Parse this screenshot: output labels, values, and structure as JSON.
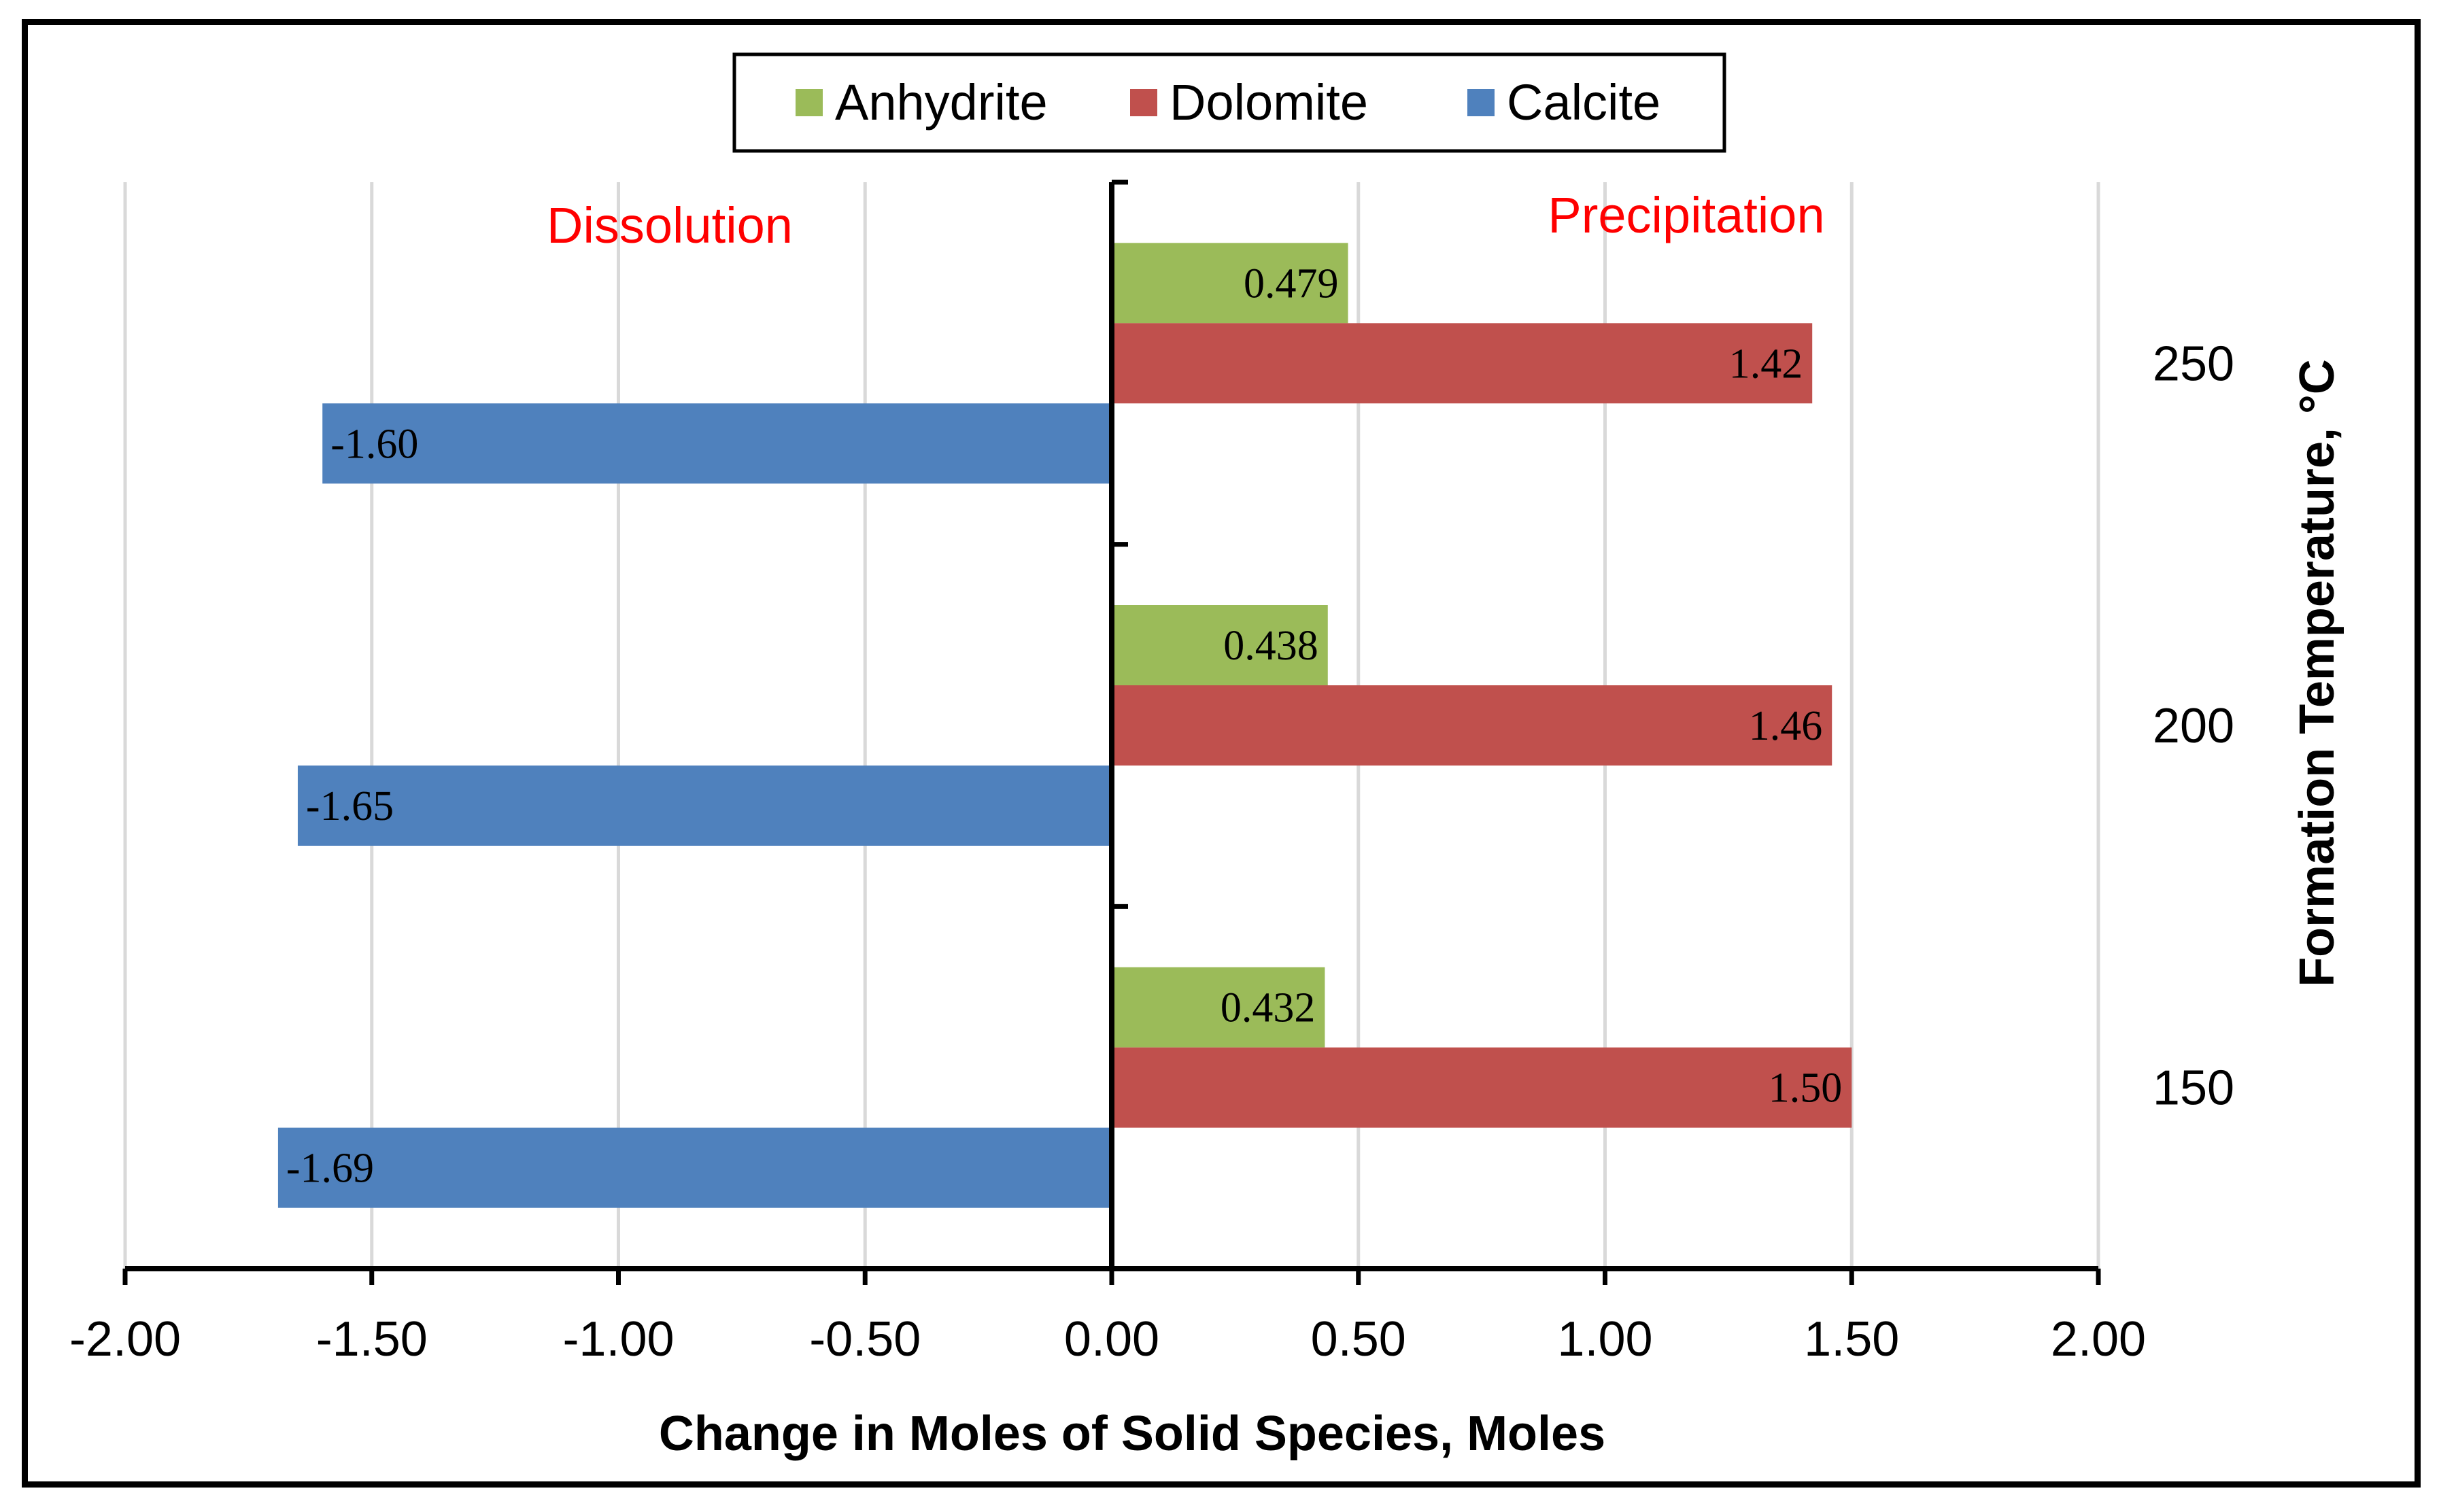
{
  "chart_data": {
    "type": "bar",
    "orientation": "horizontal",
    "categories": [
      "250",
      "200",
      "150"
    ],
    "series": [
      {
        "name": "Anhydrite",
        "color": "#9BBB59",
        "values": [
          0.479,
          0.438,
          0.432
        ],
        "labels": [
          "0.479",
          "0.438",
          "0.432"
        ]
      },
      {
        "name": "Dolomite",
        "color": "#C0504D",
        "values": [
          1.42,
          1.46,
          1.5
        ],
        "labels": [
          "1.42",
          "1.46",
          "1.50"
        ]
      },
      {
        "name": "Calcite",
        "color": "#4F81BD",
        "values": [
          -1.6,
          -1.65,
          -1.69
        ],
        "labels": [
          "-1.60",
          "-1.65",
          "-1.69"
        ]
      }
    ],
    "xlabel": "Change in Moles of Solid Species, Moles",
    "ylabel": "Formation Temperature, °C",
    "xlim": [
      -2.0,
      2.0
    ],
    "xticks": [
      "-2.00",
      "-1.50",
      "-1.00",
      "-0.50",
      "0.00",
      "0.50",
      "1.00",
      "1.50",
      "2.00"
    ],
    "annotations": [
      {
        "text": "Dissolution",
        "color": "#FF0000"
      },
      {
        "text": "Precipitation",
        "color": "#FF0000"
      }
    ],
    "grid": "vertical",
    "legend": "top-center"
  }
}
